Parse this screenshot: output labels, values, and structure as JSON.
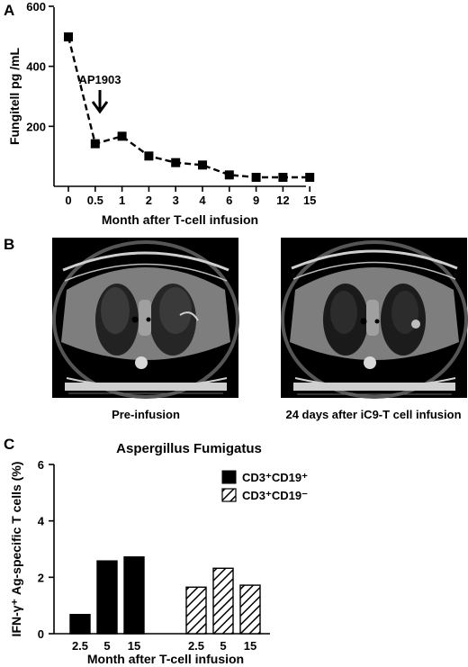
{
  "panels": {
    "a": "A",
    "b": "B",
    "c": "C"
  },
  "chart_data": [
    {
      "type": "line",
      "panel": "A",
      "title": "",
      "xlabel": "Month after T-cell infusion",
      "ylabel": "Fungitell pg /mL",
      "categories": [
        "0",
        "0.5",
        "1",
        "2",
        "3",
        "4",
        "6",
        "9",
        "12",
        "15"
      ],
      "values": [
        498,
        142,
        167,
        101,
        79,
        71,
        38,
        30,
        30,
        30
      ],
      "ylim": [
        0,
        600
      ],
      "yticks": [
        "200",
        "400",
        "600"
      ],
      "line_style": "dashed",
      "marker": "square",
      "annotation": {
        "text": "AP1903",
        "category": "0.5"
      },
      "grid": false
    },
    {
      "type": "bar",
      "panel": "C",
      "title": "Aspergillus Fumigatus",
      "xlabel": "Month after T-cell infusion",
      "ylabel": "IFN-γ⁺ Ag-specific T cells  (%)",
      "ylim": [
        0,
        6
      ],
      "yticks": [
        "0",
        "2",
        "4",
        "6"
      ],
      "legend_position": "top-right",
      "groups": [
        {
          "name": "CD3⁺CD19⁺",
          "fill": "solid",
          "categories": [
            "2.5",
            "5",
            "15"
          ],
          "values": [
            0.68,
            2.58,
            2.72
          ]
        },
        {
          "name": "CD3⁺CD19⁻",
          "fill": "hatched",
          "categories": [
            "2.5",
            "5",
            "15"
          ],
          "values": [
            1.65,
            2.32,
            1.72
          ]
        }
      ],
      "grid": false
    }
  ],
  "images": [
    {
      "id": "pre",
      "caption": "Pre-infusion"
    },
    {
      "id": "post",
      "caption": "24 days after iC9-T cell infusion"
    }
  ],
  "colors": {
    "ink": "#000000",
    "ct_bg": "#000000",
    "lung": "#1c1c1c",
    "tissue": "#8c8c8c"
  }
}
